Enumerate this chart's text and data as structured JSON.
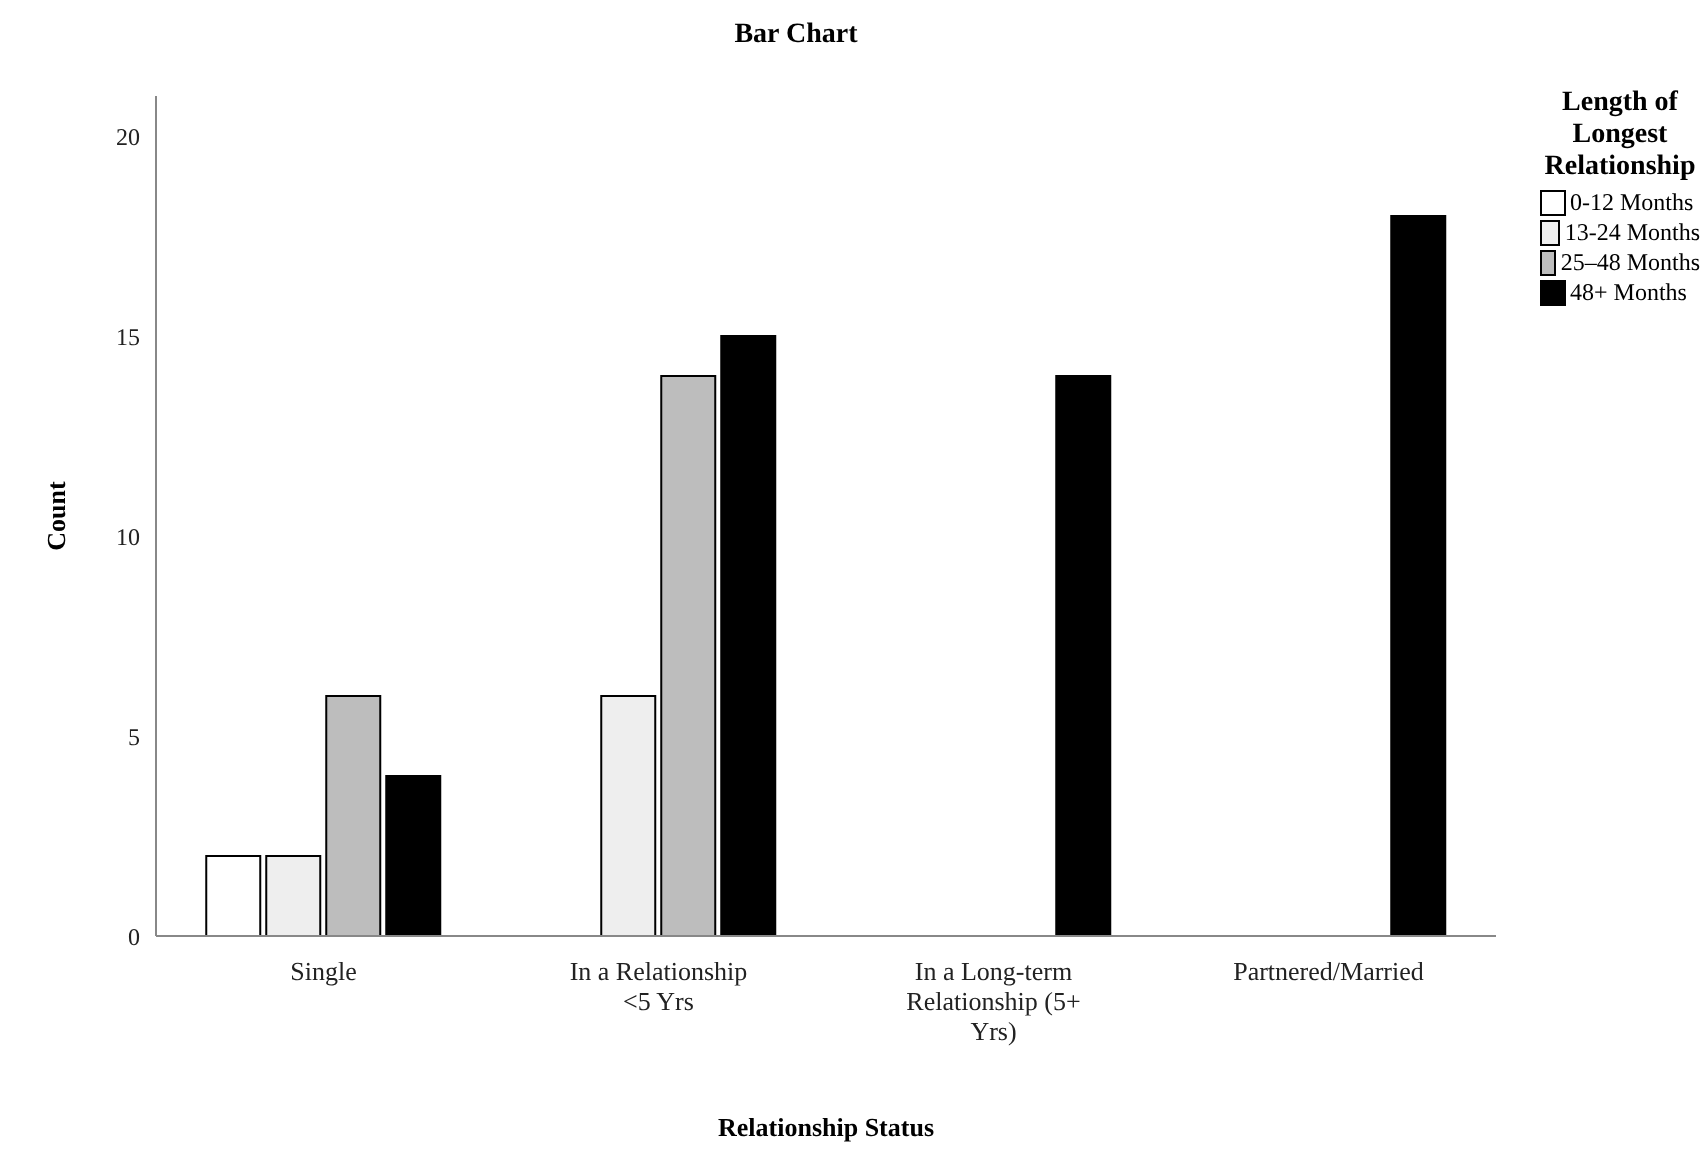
{
  "chart_data": {
    "type": "bar",
    "title": "Bar Chart",
    "xlabel": "Relationship Status",
    "ylabel": "Count",
    "legend_title": "Length of Longest Relationship",
    "categories": [
      "Single",
      "In a Relationship <5 Yrs",
      "In a Long-term Relationship (5+ Yrs)",
      "Partnered/Married"
    ],
    "series": [
      {
        "name": "0-12 Months",
        "color": "#ffffff",
        "values": [
          2,
          0,
          0,
          0
        ]
      },
      {
        "name": "13-24 Months",
        "color": "#eeeeee",
        "values": [
          2,
          6,
          0,
          0
        ]
      },
      {
        "name": "25–48 Months",
        "color": "#bdbdbd",
        "values": [
          6,
          14,
          0,
          0
        ]
      },
      {
        "name": "48+ Months",
        "color": "#000000",
        "values": [
          4,
          15,
          14,
          18
        ]
      }
    ],
    "ylim": [
      0,
      21
    ],
    "yticks": [
      0,
      5,
      10,
      15,
      20
    ],
    "grid": false,
    "legend": "top right"
  }
}
